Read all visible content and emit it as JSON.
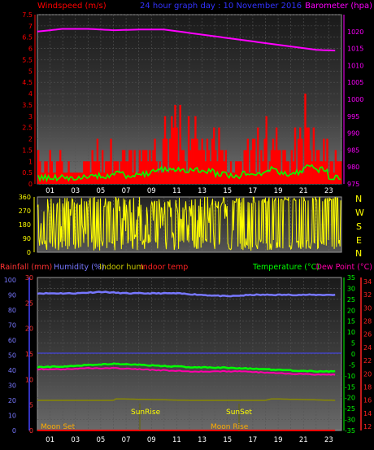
{
  "header": {
    "left_label": "Windspeed (m/s)",
    "center_label": "24 hour graph day : 10 November 2016",
    "right_label": "Barometer (hpa)"
  },
  "bottom_header": {
    "rainfall": "Rainfall (mm)",
    "humidity": "Humidity (%)",
    "indoor_hum": "Indoor hum",
    "indoor_temp": "Indoor temp",
    "temperature": "Temperature (°C)",
    "dew_point": "Dew Point (°C)"
  },
  "compass_labels": [
    "N",
    "W",
    "S",
    "E",
    "N"
  ],
  "annotations": {
    "moon_set": "Moon Set",
    "sun_rise": "SunRise",
    "sun_set": "SunSet",
    "moon_rise": "Moon Rise"
  },
  "colors": {
    "wind": "#ff0000",
    "gust_avg": "#00ff00",
    "pressure": "#ff00ff",
    "direction": "#ffff00",
    "humidity": "#7777ff",
    "temperature": "#00ff00",
    "dew_point": "#ff00aa",
    "indoor_hum": "#888800",
    "axis_blue": "#4444ff",
    "axis_red": "#ff2222"
  },
  "chart_data": [
    {
      "type": "bar",
      "series": [
        {
          "name": "Windspeed (m/s)",
          "axis": "left",
          "hourly_max": [
            1.5,
            1.5,
            1.5,
            1.5,
            2.0,
            2.0,
            2.5,
            2.0,
            2.5,
            3.5,
            3.5,
            3.5,
            3.5,
            3.0,
            2.5,
            2.0,
            2.5,
            2.5,
            3.5,
            2.5,
            3.0,
            4.0,
            3.5,
            1.5
          ]
        },
        {
          "name": "Barometer (hpa)",
          "axis": "right",
          "x": [
            0,
            2,
            4,
            6,
            8,
            10,
            12,
            14,
            16,
            18,
            20,
            22,
            23.5
          ],
          "values": [
            1020.0,
            1020.8,
            1020.8,
            1020.4,
            1020.6,
            1020.6,
            1019.6,
            1018.6,
            1017.6,
            1016.6,
            1015.6,
            1014.6,
            1014.4
          ]
        }
      ],
      "x_ticks": [
        "01",
        "03",
        "05",
        "07",
        "09",
        "11",
        "13",
        "15",
        "17",
        "19",
        "21",
        "23"
      ],
      "left_ticks": [
        "0",
        "0.5",
        "1",
        "1.5",
        "2",
        "2.5",
        "3",
        "3.5",
        "4",
        "4.5",
        "5",
        "5.5",
        "6",
        "6.5",
        "7",
        "7.5"
      ],
      "right_ticks": [
        "975",
        "980",
        "985",
        "990",
        "995",
        "1000",
        "1005",
        "1010",
        "1015",
        "1020"
      ],
      "ylim_left": [
        0,
        7.5
      ],
      "ylim_right": [
        975,
        1025
      ]
    },
    {
      "type": "scatter",
      "series": [
        {
          "name": "Wind direction",
          "values_note": "dense"
        }
      ],
      "y_ticks": [
        "0",
        "90",
        "180",
        "270",
        "360"
      ],
      "ylim": [
        0,
        360
      ]
    },
    {
      "type": "line",
      "series": [
        {
          "name": "Humidity (%)",
          "axis": "left",
          "x": [
            0,
            3,
            5,
            7,
            9,
            11,
            13,
            15,
            17,
            19,
            21,
            23.5
          ],
          "values": [
            91,
            91,
            92,
            91,
            91,
            91,
            90,
            89,
            90,
            90,
            90,
            90
          ]
        },
        {
          "name": "Temperature (°C)",
          "axis": "right",
          "x": [
            0,
            2,
            4,
            6,
            8,
            10,
            12,
            14,
            16,
            18,
            20,
            22,
            23.5
          ],
          "values": [
            -6,
            -5.8,
            -5,
            -4.5,
            -5,
            -5.5,
            -6,
            -6.2,
            -6.5,
            -7,
            -7.5,
            -8,
            -8
          ]
        },
        {
          "name": "Dew Point (°C)",
          "axis": "right",
          "x": [
            0,
            2,
            4,
            6,
            8,
            10,
            12,
            14,
            16,
            18,
            20,
            22,
            23.5
          ],
          "values": [
            -7,
            -7,
            -6.5,
            -6.5,
            -7,
            -7.5,
            -8,
            -8,
            -8,
            -8.5,
            -9,
            -9.5,
            -9.5
          ]
        },
        {
          "name": "Indoor hum",
          "axis": "left",
          "x": [
            0,
            6,
            6.2,
            12,
            18,
            18.5,
            23.5
          ],
          "values": [
            20,
            20,
            21,
            20,
            20,
            21,
            20
          ]
        },
        {
          "name": "Rainfall (mm)",
          "axis": "left",
          "x": [
            0,
            23.5
          ],
          "values": [
            0,
            0
          ]
        }
      ],
      "x_ticks": [
        "01",
        "03",
        "05",
        "07",
        "09",
        "11",
        "13",
        "15",
        "17",
        "19",
        "21",
        "23"
      ],
      "left_ticks": [
        "0",
        "10",
        "20",
        "30",
        "40",
        "50",
        "60",
        "70",
        "80",
        "90",
        "100"
      ],
      "left_ticks_inner": [
        "0",
        "5",
        "10",
        "15",
        "20",
        "25",
        "30"
      ],
      "right_ticks_inner": [
        "-35",
        "-30",
        "-25",
        "-20",
        "-15",
        "-10",
        "-5",
        "0",
        "5",
        "10",
        "15",
        "20",
        "25",
        "30",
        "35"
      ],
      "right_ticks_outer": [
        "12",
        "14",
        "16",
        "18",
        "20",
        "22",
        "24",
        "26",
        "28",
        "30",
        "32",
        "34"
      ],
      "ylim_left": [
        0,
        100
      ],
      "ylim_right": [
        -35,
        35
      ]
    }
  ]
}
